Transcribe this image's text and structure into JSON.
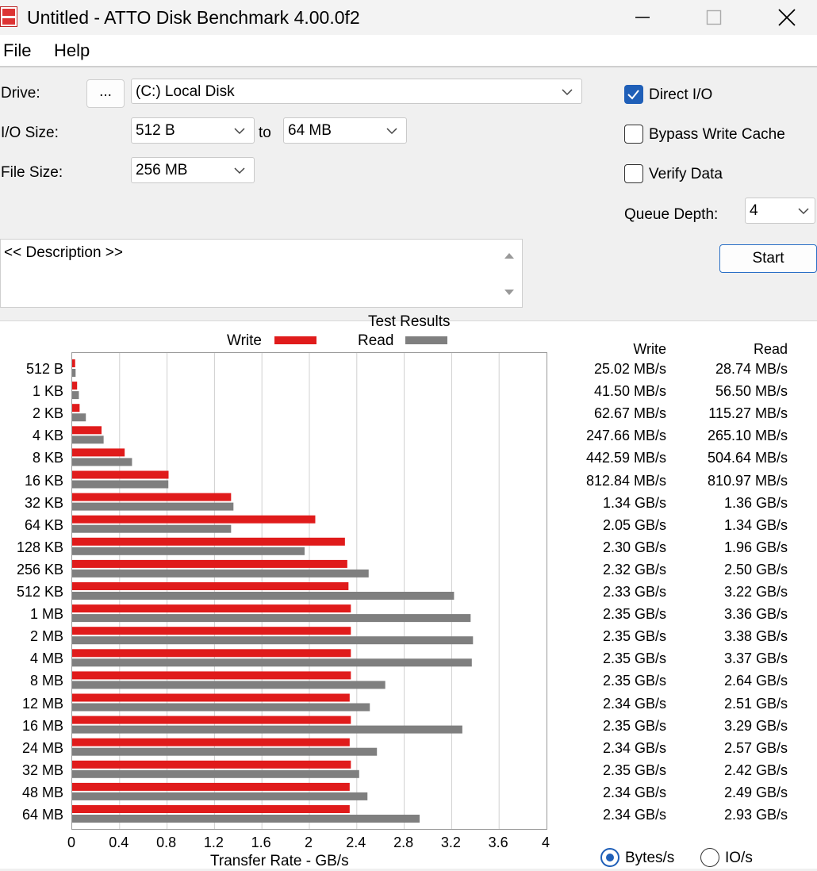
{
  "window": {
    "title": "Untitled - ATTO Disk Benchmark 4.00.0f2"
  },
  "menu": {
    "file": "File",
    "help": "Help"
  },
  "settings": {
    "drive_label": "Drive:",
    "browse_label": "...",
    "drive_value": "(C:) Local Disk",
    "io_size_label": "I/O Size:",
    "io_from": "512 B",
    "to_label": "to",
    "io_to": "64 MB",
    "file_size_label": "File Size:",
    "file_size": "256 MB",
    "direct_io": {
      "label": "Direct I/O",
      "checked": true
    },
    "bypass_write_cache": {
      "label": "Bypass Write Cache",
      "checked": false
    },
    "verify_data": {
      "label": "Verify Data",
      "checked": false
    },
    "queue_depth_label": "Queue Depth:",
    "queue_depth": "4",
    "start_label": "Start",
    "description": "<< Description >>"
  },
  "results": {
    "title": "Test Results",
    "legend_write": "Write",
    "legend_read": "Read",
    "col_write": "Write",
    "col_read": "Read",
    "xaxis_label": "Transfer Rate - GB/s",
    "xticks": [
      "0",
      "0.4",
      "0.8",
      "1.2",
      "1.6",
      "2",
      "2.4",
      "2.8",
      "3.2",
      "3.6",
      "4"
    ],
    "units_bytes": "Bytes/s",
    "units_io": "IO/s",
    "units_selected": "bytes",
    "write_color": "#e01b1b",
    "read_color": "#7f7f7f"
  },
  "chart_data": {
    "type": "bar",
    "orientation": "horizontal",
    "categories": [
      "512 B",
      "1 KB",
      "2 KB",
      "4 KB",
      "8 KB",
      "16 KB",
      "32 KB",
      "64 KB",
      "128 KB",
      "256 KB",
      "512 KB",
      "1 MB",
      "2 MB",
      "4 MB",
      "8 MB",
      "12 MB",
      "16 MB",
      "24 MB",
      "32 MB",
      "48 MB",
      "64 MB"
    ],
    "xlim": [
      0,
      4
    ],
    "xlabel": "Transfer Rate - GB/s",
    "series": [
      {
        "name": "Write",
        "values": [
          0.02502,
          0.0415,
          0.06267,
          0.24766,
          0.44259,
          0.81284,
          1.34,
          2.05,
          2.3,
          2.32,
          2.33,
          2.35,
          2.35,
          2.35,
          2.35,
          2.34,
          2.35,
          2.34,
          2.35,
          2.34,
          2.34
        ],
        "labels": [
          "25.02 MB/s",
          "41.50 MB/s",
          "62.67 MB/s",
          "247.66 MB/s",
          "442.59 MB/s",
          "812.84 MB/s",
          "1.34 GB/s",
          "2.05 GB/s",
          "2.30 GB/s",
          "2.32 GB/s",
          "2.33 GB/s",
          "2.35 GB/s",
          "2.35 GB/s",
          "2.35 GB/s",
          "2.35 GB/s",
          "2.34 GB/s",
          "2.35 GB/s",
          "2.34 GB/s",
          "2.35 GB/s",
          "2.34 GB/s",
          "2.34 GB/s"
        ]
      },
      {
        "name": "Read",
        "values": [
          0.02874,
          0.0565,
          0.11527,
          0.2651,
          0.50464,
          0.81097,
          1.36,
          1.34,
          1.96,
          2.5,
          3.22,
          3.36,
          3.38,
          3.37,
          2.64,
          2.51,
          3.29,
          2.57,
          2.42,
          2.49,
          2.93
        ],
        "labels": [
          "28.74 MB/s",
          "56.50 MB/s",
          "115.27 MB/s",
          "265.10 MB/s",
          "504.64 MB/s",
          "810.97 MB/s",
          "1.36 GB/s",
          "1.34 GB/s",
          "1.96 GB/s",
          "2.50 GB/s",
          "3.22 GB/s",
          "3.36 GB/s",
          "3.38 GB/s",
          "3.37 GB/s",
          "2.64 GB/s",
          "2.51 GB/s",
          "3.29 GB/s",
          "2.57 GB/s",
          "2.42 GB/s",
          "2.49 GB/s",
          "2.93 GB/s"
        ]
      }
    ]
  }
}
